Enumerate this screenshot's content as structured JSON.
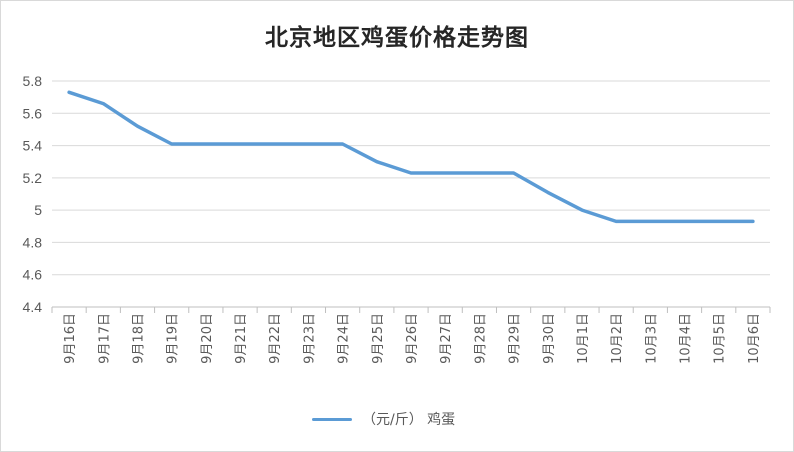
{
  "chart_data": {
    "type": "line",
    "title": "北京地区鸡蛋价格走势图",
    "categories": [
      "9月16日",
      "9月17日",
      "9月18日",
      "9月19日",
      "9月20日",
      "9月21日",
      "9月22日",
      "9月23日",
      "9月24日",
      "9月25日",
      "9月26日",
      "9月27日",
      "9月28日",
      "9月29日",
      "9月30日",
      "10月1日",
      "10月2日",
      "10月3日",
      "10月4日",
      "10月5日",
      "10月6日"
    ],
    "series": [
      {
        "name": "（元/斤） 鸡蛋",
        "values": [
          5.73,
          5.66,
          5.52,
          5.41,
          5.41,
          5.41,
          5.41,
          5.41,
          5.41,
          5.3,
          5.23,
          5.23,
          5.23,
          5.23,
          5.11,
          5.0,
          4.93,
          4.93,
          4.93,
          4.93,
          4.93
        ]
      }
    ],
    "y_ticks": [
      "4.4",
      "4.6",
      "4.8",
      "5",
      "5.2",
      "5.4",
      "5.6",
      "5.8"
    ],
    "ylim": [
      4.4,
      5.8
    ],
    "grid": true,
    "legend_position": "bottom",
    "line_color": "#5b9bd5",
    "grid_color": "#d9d9d9"
  }
}
